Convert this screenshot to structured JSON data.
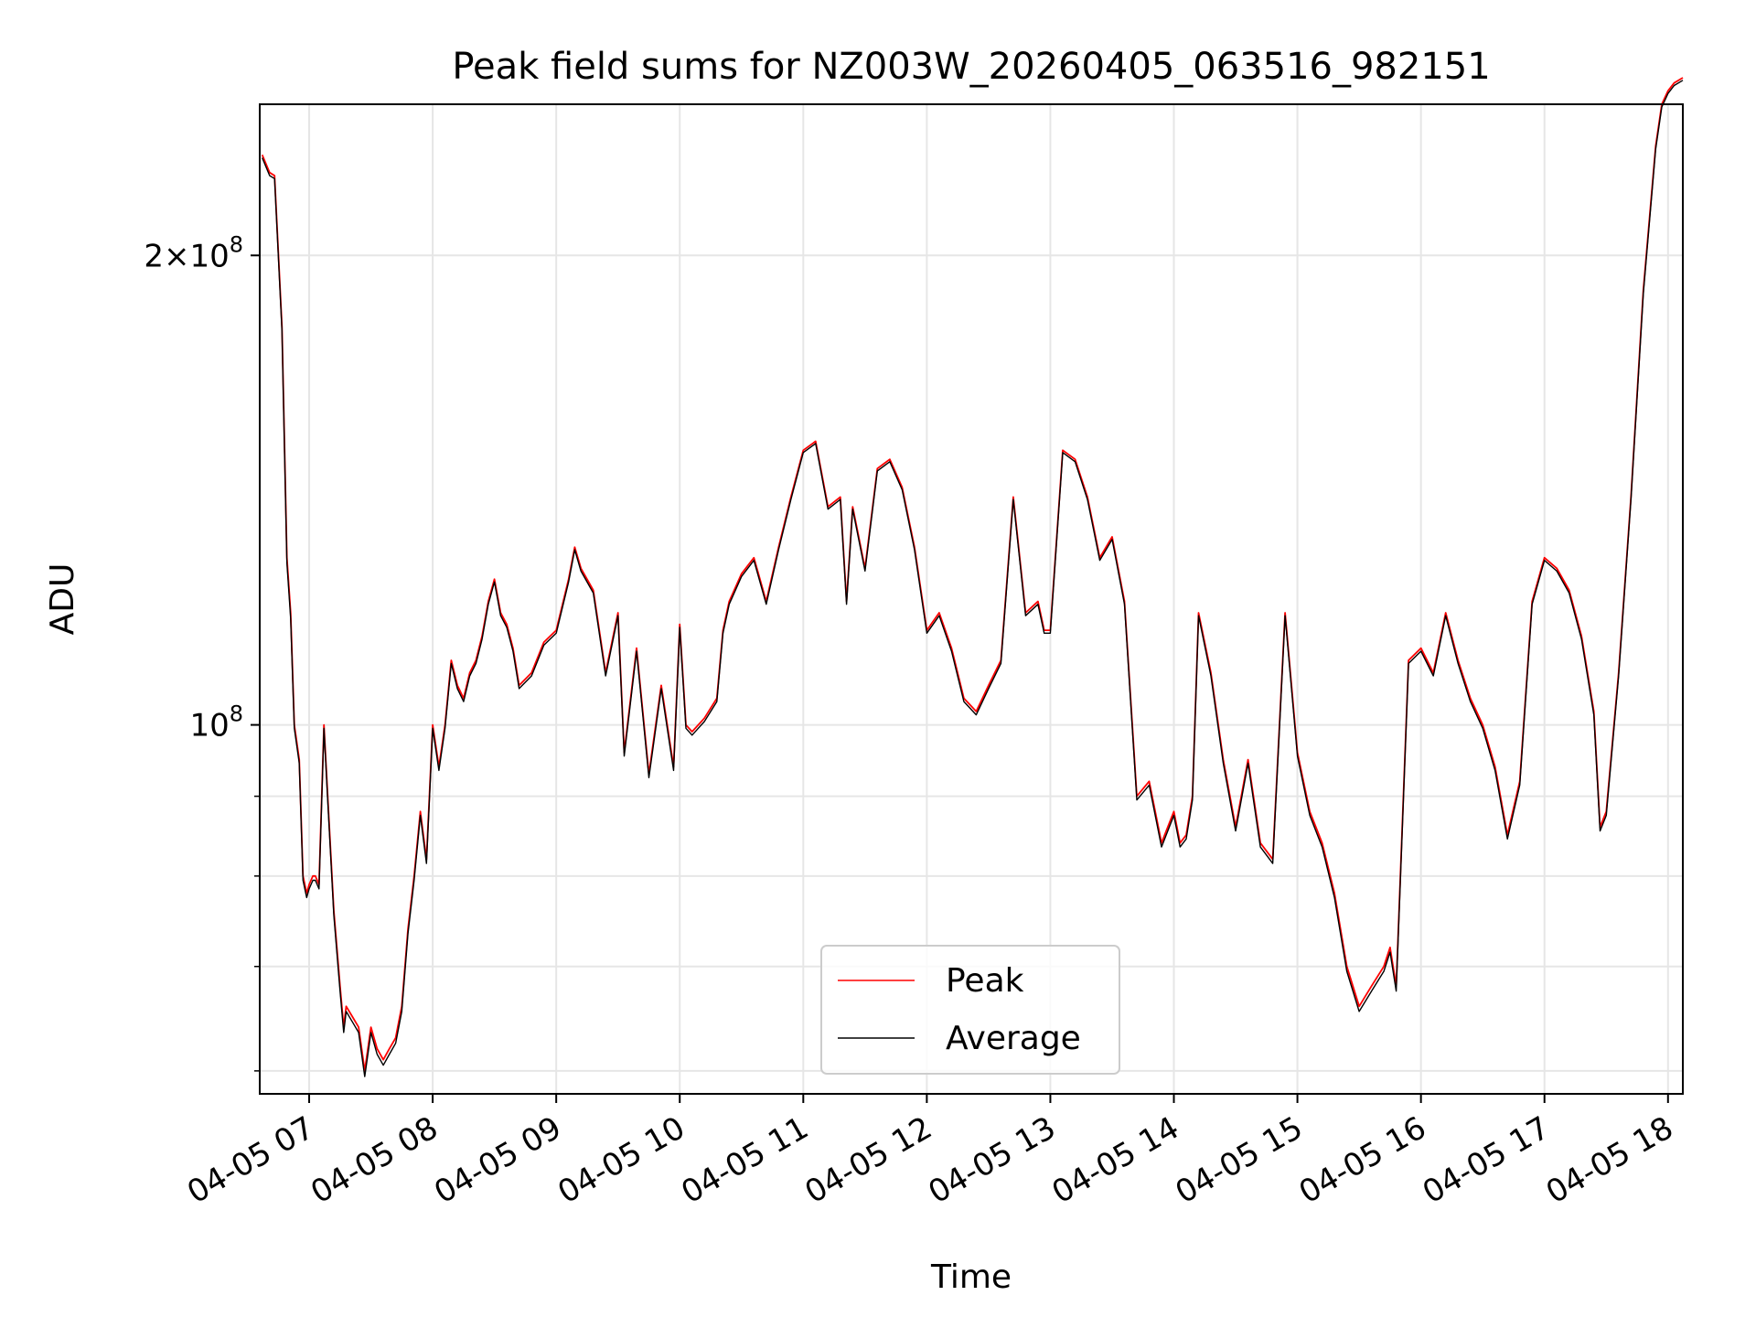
{
  "chart_data": {
    "type": "line",
    "title": "Peak field sums for NZ003W_20260405_063516_982151",
    "xlabel": "Time",
    "ylabel": "ADU",
    "yscale": "log",
    "ylim": [
      58000000,
      250000000
    ],
    "xlim_hours": [
      6.6,
      18.12
    ],
    "x_ticks": [
      {
        "hour": 7,
        "label": "04-05 07"
      },
      {
        "hour": 8,
        "label": "04-05 08"
      },
      {
        "hour": 9,
        "label": "04-05 09"
      },
      {
        "hour": 10,
        "label": "04-05 10"
      },
      {
        "hour": 11,
        "label": "04-05 11"
      },
      {
        "hour": 12,
        "label": "04-05 12"
      },
      {
        "hour": 13,
        "label": "04-05 13"
      },
      {
        "hour": 14,
        "label": "04-05 14"
      },
      {
        "hour": 15,
        "label": "04-05 15"
      },
      {
        "hour": 16,
        "label": "04-05 16"
      },
      {
        "hour": 17,
        "label": "04-05 17"
      },
      {
        "hour": 18,
        "label": "04-05 18"
      }
    ],
    "y_major_ticks": [
      {
        "value": 100000000,
        "base": "10",
        "exp": "8",
        "mult": ""
      },
      {
        "value": 200000000,
        "base": "10",
        "exp": "8",
        "mult": "2×"
      }
    ],
    "y_minor_ticks": [
      60000000,
      70000000,
      80000000,
      90000000
    ],
    "grid": true,
    "legend": {
      "position": "lower-center",
      "entries": [
        {
          "label": "Peak",
          "color": "#ff0000"
        },
        {
          "label": "Average",
          "color": "#000000"
        }
      ]
    },
    "x": [
      6.62,
      6.68,
      6.72,
      6.78,
      6.82,
      6.85,
      6.88,
      6.92,
      6.95,
      6.98,
      7.0,
      7.03,
      7.05,
      7.08,
      7.12,
      7.15,
      7.2,
      7.25,
      7.28,
      7.3,
      7.35,
      7.4,
      7.45,
      7.5,
      7.55,
      7.6,
      7.65,
      7.7,
      7.75,
      7.8,
      7.85,
      7.9,
      7.95,
      8.0,
      8.05,
      8.1,
      8.15,
      8.2,
      8.25,
      8.3,
      8.35,
      8.4,
      8.45,
      8.5,
      8.55,
      8.6,
      8.65,
      8.7,
      8.8,
      8.9,
      9.0,
      9.1,
      9.15,
      9.2,
      9.3,
      9.4,
      9.5,
      9.55,
      9.65,
      9.75,
      9.85,
      9.95,
      10.0,
      10.05,
      10.1,
      10.15,
      10.2,
      10.3,
      10.35,
      10.4,
      10.5,
      10.6,
      10.7,
      10.8,
      10.9,
      11.0,
      11.1,
      11.2,
      11.3,
      11.35,
      11.4,
      11.5,
      11.6,
      11.7,
      11.8,
      11.9,
      12.0,
      12.1,
      12.2,
      12.3,
      12.4,
      12.5,
      12.6,
      12.7,
      12.8,
      12.9,
      12.95,
      13.0,
      13.1,
      13.2,
      13.3,
      13.4,
      13.5,
      13.6,
      13.7,
      13.8,
      13.9,
      14.0,
      14.05,
      14.1,
      14.15,
      14.2,
      14.3,
      14.4,
      14.5,
      14.6,
      14.7,
      14.8,
      14.9,
      15.0,
      15.1,
      15.2,
      15.3,
      15.4,
      15.5,
      15.6,
      15.7,
      15.75,
      15.8,
      15.9,
      16.0,
      16.1,
      16.2,
      16.3,
      16.4,
      16.5,
      16.6,
      16.7,
      16.8,
      16.9,
      17.0,
      17.1,
      17.2,
      17.3,
      17.4,
      17.45,
      17.5,
      17.6,
      17.7,
      17.8,
      17.9,
      17.95,
      18.0,
      18.05,
      18.12
    ],
    "series": [
      {
        "name": "Peak",
        "color": "#ff0000",
        "values": [
          232000000,
          226000000,
          225000000,
          180000000,
          128000000,
          118000000,
          100000000,
          95000000,
          80000000,
          78000000,
          79000000,
          80000000,
          80000000,
          79000000,
          100000000,
          90000000,
          76000000,
          68000000,
          64000000,
          66000000,
          65000000,
          64000000,
          60000000,
          64000000,
          62000000,
          61000000,
          62000000,
          63000000,
          66000000,
          74000000,
          80000000,
          88000000,
          82000000,
          100000000,
          94000000,
          100000000,
          110000000,
          106000000,
          104000000,
          108000000,
          110000000,
          114000000,
          120000000,
          124000000,
          118000000,
          116000000,
          112000000,
          106000000,
          108000000,
          113000000,
          115000000,
          124000000,
          130000000,
          126000000,
          122000000,
          108000000,
          118000000,
          96000000,
          112000000,
          93000000,
          106000000,
          94000000,
          116000000,
          100000000,
          99000000,
          100000000,
          101000000,
          104000000,
          115000000,
          120000000,
          125000000,
          128000000,
          120000000,
          130000000,
          140000000,
          150000000,
          152000000,
          138000000,
          140000000,
          120000000,
          138000000,
          126000000,
          146000000,
          148000000,
          142000000,
          130000000,
          115000000,
          118000000,
          112000000,
          104000000,
          102000000,
          106000000,
          110000000,
          140000000,
          118000000,
          120000000,
          115000000,
          115000000,
          150000000,
          148000000,
          140000000,
          128000000,
          132000000,
          120000000,
          90000000,
          92000000,
          84000000,
          88000000,
          84000000,
          85000000,
          90000000,
          118000000,
          108000000,
          95000000,
          86000000,
          95000000,
          84000000,
          82000000,
          118000000,
          96000000,
          88000000,
          84000000,
          78000000,
          70000000,
          66000000,
          68000000,
          70000000,
          72000000,
          68000000,
          110000000,
          112000000,
          108000000,
          118000000,
          110000000,
          104000000,
          100000000,
          94000000,
          85000000,
          92000000,
          120000000,
          128000000,
          126000000,
          122000000,
          114000000,
          102000000,
          86000000,
          88000000,
          108000000,
          140000000,
          190000000,
          235000000,
          250000000,
          255000000,
          258000000,
          260000000
        ]
      },
      {
        "name": "Average",
        "color": "#000000",
        "values": [
          231000000,
          225000000,
          224000000,
          179000000,
          127000000,
          117000000,
          99500000,
          94500000,
          79500000,
          77500000,
          78500000,
          79500000,
          79500000,
          78500000,
          99500000,
          89500000,
          75500000,
          67500000,
          63500000,
          65500000,
          64500000,
          63500000,
          59500000,
          63500000,
          61500000,
          60500000,
          61500000,
          62500000,
          65500000,
          73500000,
          79500000,
          87500000,
          81500000,
          99500000,
          93500000,
          99500000,
          109500000,
          105500000,
          103500000,
          107500000,
          109500000,
          113500000,
          119500000,
          123500000,
          117500000,
          115500000,
          111500000,
          105500000,
          107500000,
          112500000,
          114500000,
          123500000,
          129500000,
          125500000,
          121500000,
          107500000,
          117500000,
          95500000,
          111500000,
          92500000,
          105500000,
          93500000,
          115500000,
          99500000,
          98500000,
          99500000,
          100500000,
          103500000,
          114500000,
          119500000,
          124500000,
          127500000,
          119500000,
          129500000,
          139500000,
          149500000,
          151500000,
          137500000,
          139500000,
          119500000,
          137500000,
          125500000,
          145500000,
          147500000,
          141500000,
          129500000,
          114500000,
          117500000,
          111500000,
          103500000,
          101500000,
          105500000,
          109500000,
          139500000,
          117500000,
          119500000,
          114500000,
          114500000,
          149500000,
          147500000,
          139500000,
          127500000,
          131500000,
          119500000,
          89500000,
          91500000,
          83500000,
          87500000,
          83500000,
          84500000,
          89500000,
          117500000,
          107500000,
          94500000,
          85500000,
          94500000,
          83500000,
          81500000,
          117500000,
          95500000,
          87500000,
          83500000,
          77500000,
          69500000,
          65500000,
          67500000,
          69500000,
          71500000,
          67500000,
          109500000,
          111500000,
          107500000,
          117500000,
          109500000,
          103500000,
          99500000,
          93500000,
          84500000,
          91500000,
          119500000,
          127500000,
          125500000,
          121500000,
          113500000,
          101500000,
          85500000,
          87500000,
          107500000,
          139500000,
          189000000,
          234000000,
          249000000,
          254000000,
          257000000,
          259000000
        ]
      }
    ]
  }
}
